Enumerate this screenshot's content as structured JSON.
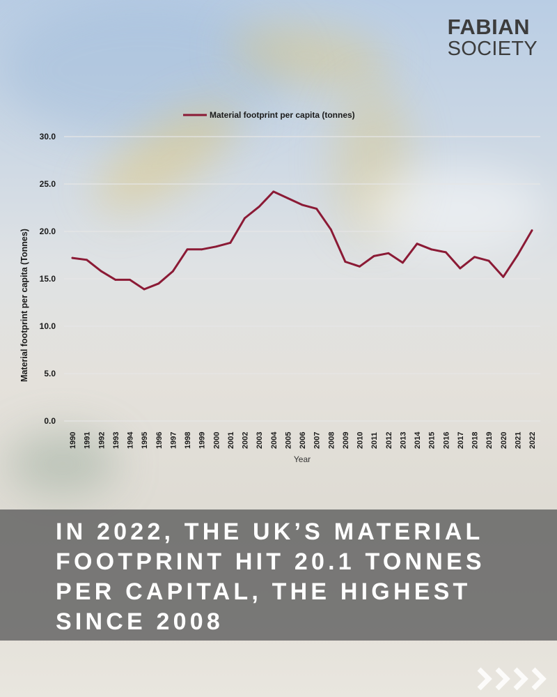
{
  "brand": {
    "name_line1": "FABIAN",
    "name_line2": "SOCIETY"
  },
  "headline": "IN 2022, THE UK’S MATERIAL FOOTPRINT HIT 20.1 TONNES PER CAPITAL, THE HIGHEST SINCE 2008",
  "navigation": {
    "next_icon": "chevron-right-icon"
  },
  "colors": {
    "series_line": "#8b1a35",
    "gridline": "#e6e6e6",
    "axis_text": "#1a1a1a"
  },
  "chart_data": {
    "type": "line",
    "title": "",
    "xlabel": "Year",
    "ylabel": "Material footprint per capita (Tonnes)",
    "x": [
      "1990",
      "1991",
      "1992",
      "1993",
      "1994",
      "1995",
      "1996",
      "1997",
      "1998",
      "1999",
      "2000",
      "2001",
      "2002",
      "2003",
      "2004",
      "2005",
      "2006",
      "2007",
      "2008",
      "2009",
      "2010",
      "2011",
      "2012",
      "2013",
      "2014",
      "2015",
      "2016",
      "2017",
      "2018",
      "2019",
      "2020",
      "2021",
      "2022"
    ],
    "series": [
      {
        "name": "Material footprint per capita (tonnes)",
        "values": [
          17.2,
          17.0,
          15.8,
          14.9,
          14.9,
          13.9,
          14.5,
          15.8,
          18.1,
          18.1,
          18.4,
          18.8,
          21.4,
          22.6,
          24.2,
          23.5,
          22.8,
          22.4,
          20.2,
          16.8,
          16.3,
          17.4,
          17.7,
          16.7,
          18.7,
          18.1,
          17.8,
          16.1,
          17.3,
          16.9,
          15.2,
          17.5,
          20.1
        ]
      }
    ],
    "yticks": [
      "0.0",
      "5.0",
      "10.0",
      "15.0",
      "20.0",
      "25.0",
      "30.0"
    ],
    "ylim": [
      0,
      30
    ],
    "grid": true,
    "legend_position": "top"
  }
}
